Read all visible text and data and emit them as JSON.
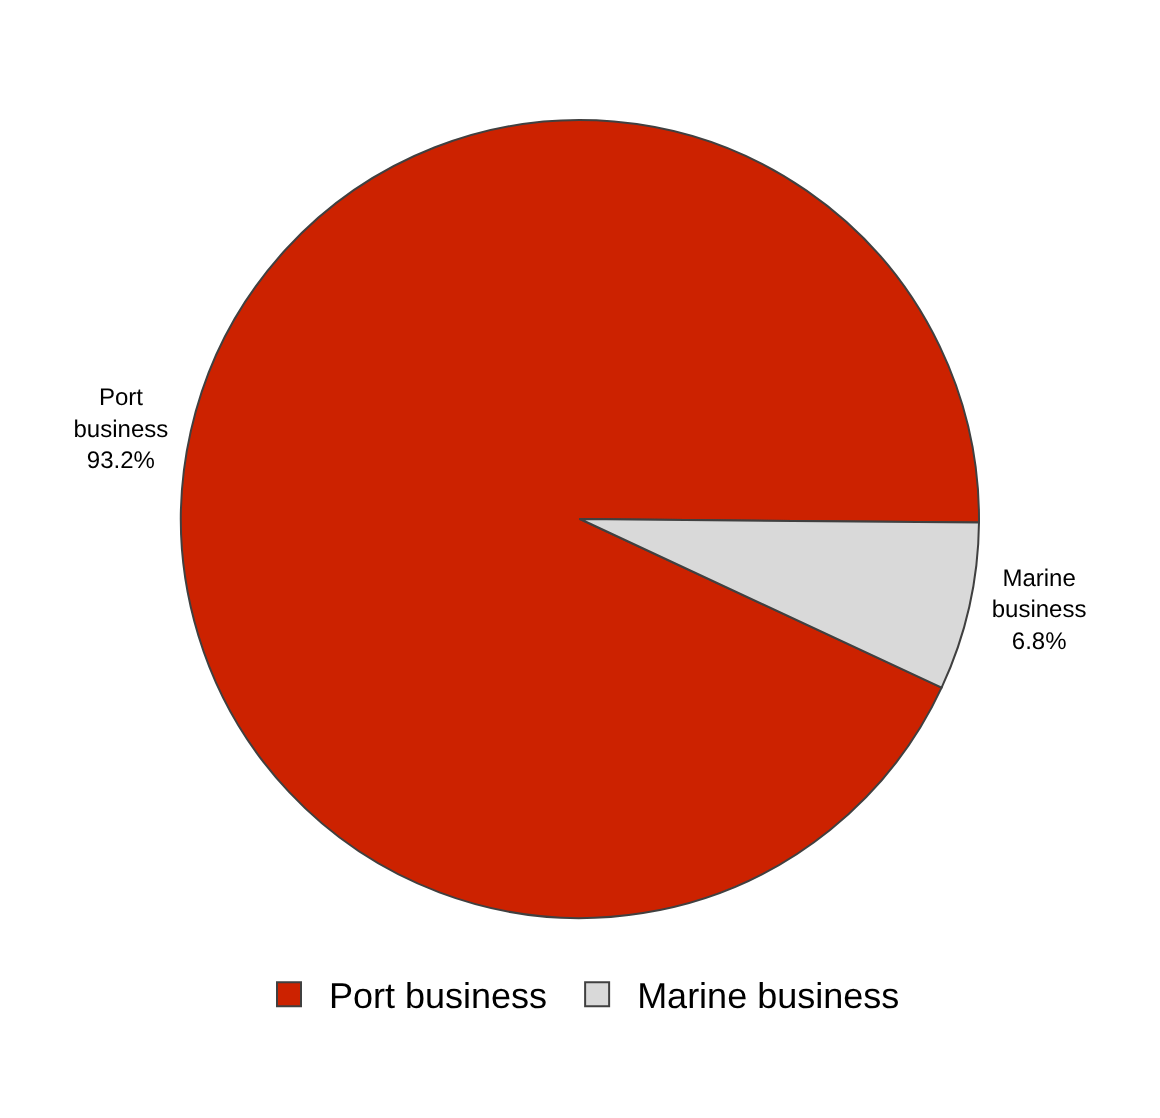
{
  "chart_data": {
    "type": "pie",
    "categories": [
      "Port business",
      "Marine business"
    ],
    "values": [
      93.2,
      6.8
    ],
    "colors": [
      "#cc2200",
      "#d9d9d9"
    ],
    "value_labels": [
      "93.2%",
      "6.8%"
    ],
    "legend": "bottom"
  }
}
